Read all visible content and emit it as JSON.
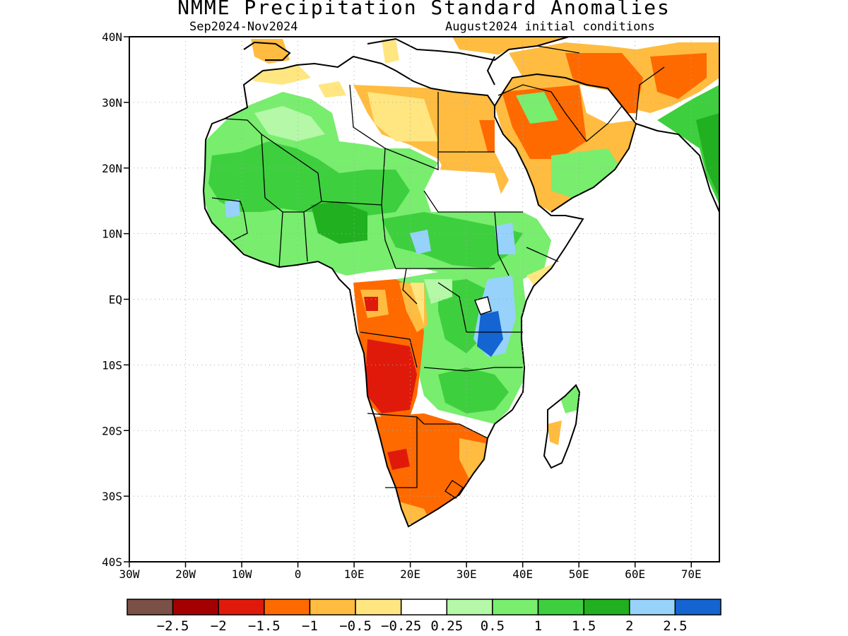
{
  "title": "NMME Precipitation Standard Anomalies",
  "subtitle_period": "Sep2024-Nov2024",
  "subtitle_init": "August2024 initial conditions",
  "map": {
    "lon_range": [
      -30,
      75
    ],
    "lat_range": [
      -40,
      40
    ],
    "grid": "dotted",
    "lat_ticks": [
      {
        "lat": 40,
        "label": "40N"
      },
      {
        "lat": 30,
        "label": "30N"
      },
      {
        "lat": 20,
        "label": "20N"
      },
      {
        "lat": 10,
        "label": "10N"
      },
      {
        "lat": 0,
        "label": "EQ"
      },
      {
        "lat": -10,
        "label": "10S"
      },
      {
        "lat": -20,
        "label": "20S"
      },
      {
        "lat": -30,
        "label": "30S"
      },
      {
        "lat": -40,
        "label": "40S"
      }
    ],
    "lon_ticks": [
      {
        "lon": -30,
        "label": "30W"
      },
      {
        "lon": -20,
        "label": "20W"
      },
      {
        "lon": -10,
        "label": "10W"
      },
      {
        "lon": 0,
        "label": "0"
      },
      {
        "lon": 10,
        "label": "10E"
      },
      {
        "lon": 20,
        "label": "20E"
      },
      {
        "lon": 30,
        "label": "30E"
      },
      {
        "lon": 40,
        "label": "40E"
      },
      {
        "lon": 50,
        "label": "50E"
      },
      {
        "lon": 60,
        "label": "60E"
      },
      {
        "lon": 70,
        "label": "70E"
      }
    ],
    "colors": {
      "dry_extreme": "#7a5047",
      "dry_2": "#a50000",
      "dry_15": "#e01a0a",
      "dry_1": "#ff6a00",
      "dry_05": "#ffbc40",
      "dry_025": "#ffe680",
      "neutral": "#ffffff",
      "wet_025": "#b4f8a8",
      "wet_05": "#78ed6e",
      "wet_1": "#3ecf3e",
      "wet_15": "#20b020",
      "wet_2": "#96d2fa",
      "wet_25": "#1464d2"
    }
  },
  "colorbar": {
    "colors": [
      "#7a5047",
      "#a50000",
      "#e01a0a",
      "#ff6a00",
      "#ffbc40",
      "#ffe680",
      "#ffffff",
      "#b4f8a8",
      "#78ed6e",
      "#3ecf3e",
      "#20b020",
      "#96d2fa",
      "#1464d2"
    ],
    "labels": [
      "−2.5",
      "−2",
      "−1.5",
      "−1",
      "−0.5",
      "−0.25",
      "0.25",
      "0.5",
      "1",
      "1.5",
      "2",
      "2.5"
    ]
  }
}
